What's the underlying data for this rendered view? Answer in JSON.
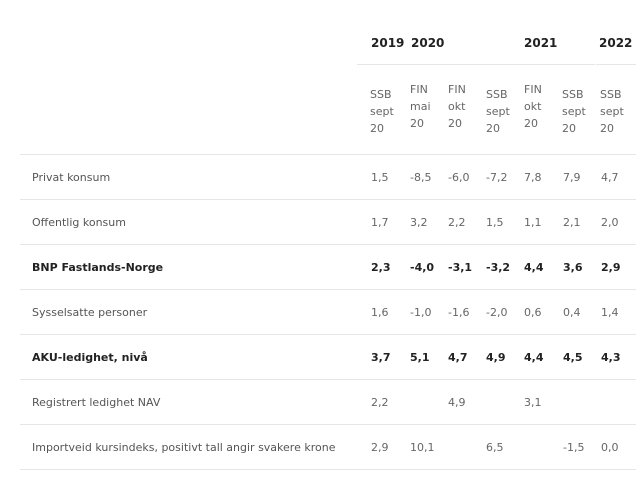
{
  "header": {
    "years": [
      {
        "label": "2019"
      },
      {
        "label": "2020"
      },
      {
        "label": "2021"
      },
      {
        "label": "2022"
      }
    ],
    "columns": [
      {
        "lines": [
          "SSB",
          "sept",
          "20"
        ]
      },
      {
        "lines": [
          "FIN",
          "mai",
          "20"
        ]
      },
      {
        "lines": [
          "FIN",
          "okt",
          "20"
        ]
      },
      {
        "lines": [
          "SSB",
          "sept",
          "20"
        ]
      },
      {
        "lines": [
          "FIN",
          "okt",
          "20"
        ]
      },
      {
        "lines": [
          "SSB",
          "sept",
          "20"
        ]
      },
      {
        "lines": [
          "SSB",
          "sept",
          "20"
        ]
      }
    ]
  },
  "rows": [
    {
      "label": "Privat konsum",
      "bold": false,
      "values": [
        "1,5",
        "-8,5",
        "-6,0",
        "-7,2",
        "7,8",
        "7,9",
        "4,7"
      ]
    },
    {
      "label": "Offentlig konsum",
      "bold": false,
      "values": [
        "1,7",
        "3,2",
        "2,2",
        "1,5",
        "1,1",
        "2,1",
        "2,0"
      ]
    },
    {
      "label": "BNP Fastlands-Norge",
      "bold": true,
      "values": [
        "2,3",
        "-4,0",
        "-3,1",
        "-3,2",
        "4,4",
        "3,6",
        "2,9"
      ]
    },
    {
      "label": "Sysselsatte personer",
      "bold": false,
      "values": [
        "1,6",
        "-1,0",
        "-1,6",
        "-2,0",
        "0,6",
        "0,4",
        "1,4"
      ]
    },
    {
      "label": "AKU-ledighet, nivå",
      "bold": true,
      "values": [
        "3,7",
        "5,1",
        "4,7",
        "4,9",
        "4,4",
        "4,5",
        "4,3"
      ]
    },
    {
      "label": "Registrert ledighet NAV",
      "bold": false,
      "values": [
        "2,2",
        "",
        "4,9",
        "",
        "3,1",
        "",
        ""
      ]
    },
    {
      "label": "Importveid kursindeks, positivt tall angir svakere krone",
      "bold": false,
      "values": [
        "2,9",
        "10,1",
        "",
        "6,5",
        "",
        "-1,5",
        "0,0"
      ]
    }
  ]
}
